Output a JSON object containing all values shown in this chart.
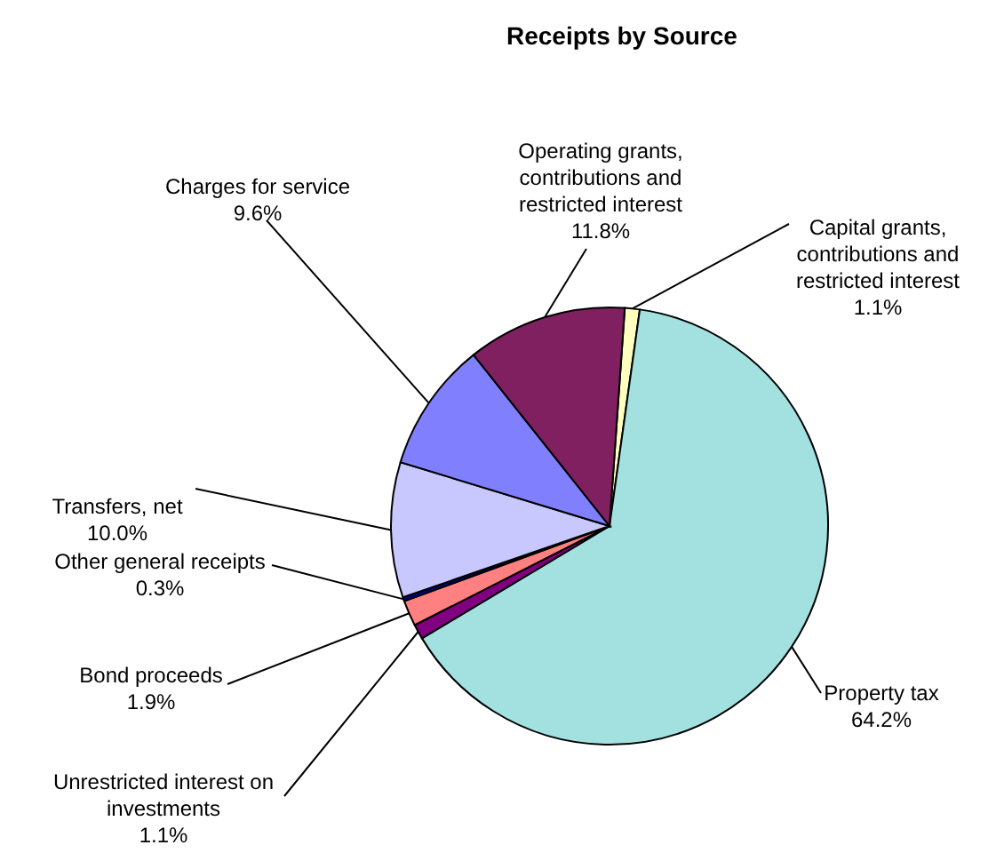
{
  "chart_data": {
    "type": "pie",
    "title": "Receipts by Source",
    "categories": [
      "Capital grants, contributions and restricted interest",
      "Property tax",
      "Unrestricted interest on investments",
      "Bond proceeds",
      "Other general receipts",
      "Transfers, net",
      "Charges for service",
      "Operating grants, contributions and restricted interest"
    ],
    "values": [
      1.1,
      64.2,
      1.1,
      1.9,
      0.3,
      10.0,
      9.6,
      11.8
    ],
    "value_labels": [
      "1.1%",
      "64.2%",
      "1.1%",
      "1.9%",
      "0.3%",
      "10.0%",
      "9.6%",
      "11.8%"
    ],
    "colors": [
      "#ffffc0",
      "#a3e0e0",
      "#800080",
      "#ff8080",
      "#000080",
      "#c8c8ff",
      "#8080ff",
      "#802060"
    ],
    "legend": false
  }
}
